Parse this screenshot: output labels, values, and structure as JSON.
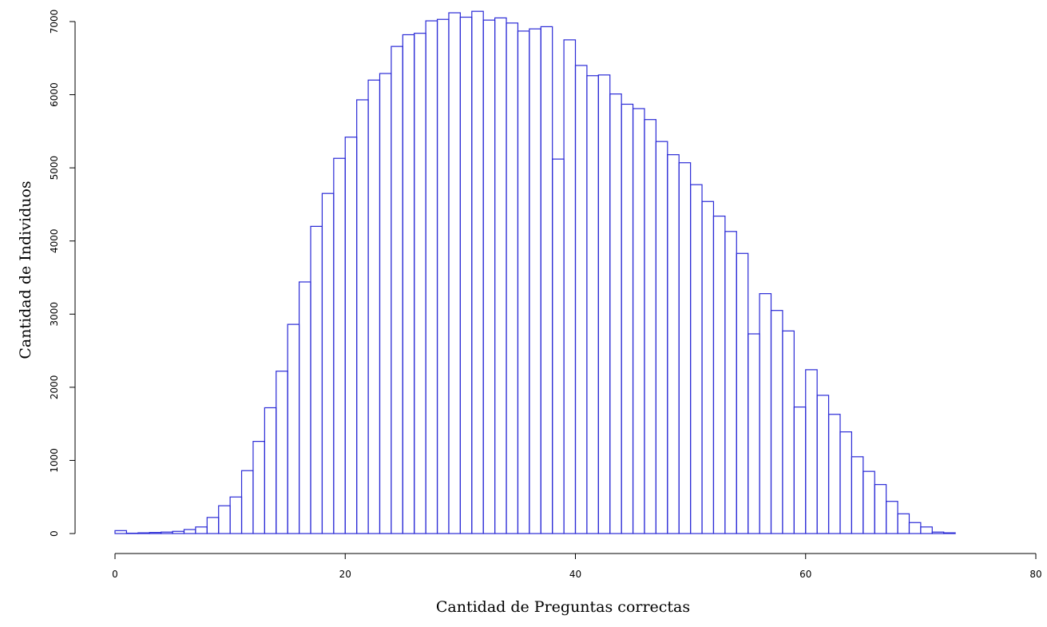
{
  "chart_data": {
    "type": "bar",
    "title": "",
    "xlabel": "Cantidad de Preguntas correctas",
    "ylabel": "Cantidad de Individuos",
    "xlim": [
      0,
      80
    ],
    "ylim": [
      0,
      7000
    ],
    "x_ticks": [
      0,
      20,
      40,
      60,
      80
    ],
    "y_ticks": [
      0,
      1000,
      2000,
      3000,
      4000,
      5000,
      6000,
      7000
    ],
    "grid": false,
    "legend": "none",
    "bar_color": "#2a2ad6",
    "bin_width": 1,
    "bin_start": 0,
    "values": [
      40,
      5,
      10,
      15,
      20,
      30,
      55,
      90,
      220,
      380,
      500,
      860,
      1260,
      1720,
      2220,
      2860,
      3440,
      4200,
      4650,
      5130,
      5420,
      5930,
      6200,
      6290,
      6660,
      6820,
      6840,
      7010,
      7030,
      7120,
      7060,
      7140,
      7020,
      7050,
      6980,
      6870,
      6900,
      6930,
      5120,
      6750,
      6400,
      6260,
      6270,
      6010,
      5870,
      5810,
      5660,
      5360,
      5180,
      5070,
      4770,
      4540,
      4340,
      4130,
      3830,
      2730,
      3280,
      3050,
      2770,
      1730,
      2240,
      1890,
      1630,
      1390,
      1050,
      850,
      670,
      440,
      270,
      150,
      90,
      20,
      10
    ]
  }
}
